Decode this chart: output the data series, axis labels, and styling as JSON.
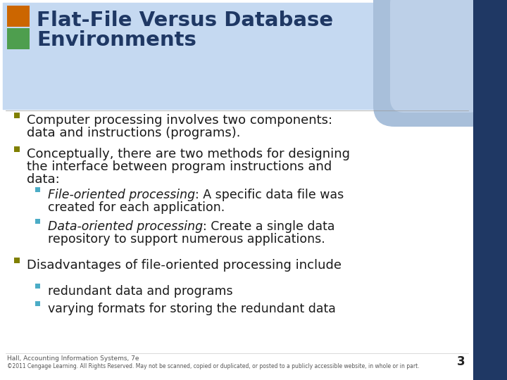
{
  "title_line1": "Flat-File Versus Database",
  "title_line2": "Environments",
  "title_color": "#1F3864",
  "bg_color": "#FFFFFF",
  "header_bg": "#C5D9F1",
  "right_bar_color": "#1F3864",
  "corner_ellipse_color": "#B8CCE4",
  "sq1_color": "#CC6600",
  "sq2_color": "#4E9E4E",
  "bullet_color_l1": "#808000",
  "bullet_color_l2": "#4BACC6",
  "text_color": "#1A1A1A",
  "footer_color": "#555555",
  "footer_text1": "Hall, Accounting Information Systems, 7e",
  "footer_text2": "©2011 Cengage Learning. All Rights Reserved. May not be scanned, copied or duplicated, or posted to a publicly accessible website, in whole or in part.",
  "page_number": "3",
  "bullets": [
    {
      "level": 1,
      "lines": [
        "Computer processing involves two components:",
        "data and instructions (programs)."
      ]
    },
    {
      "level": 1,
      "lines": [
        "Conceptually, there are two methods for designing",
        "the interface between program instructions and",
        "data:"
      ]
    },
    {
      "level": 2,
      "italic_part": "File-oriented processing",
      "lines": [
        ": A specific data file was",
        "created for each application."
      ]
    },
    {
      "level": 2,
      "italic_part": "Data-oriented processing",
      "lines": [
        ": Create a single data",
        "repository to support numerous applications."
      ]
    },
    {
      "level": 1,
      "lines": [
        "Disadvantages of file-oriented processing include"
      ]
    },
    {
      "level": 2,
      "lines": [
        "redundant data and programs"
      ]
    },
    {
      "level": 2,
      "lines": [
        "varying formats for storing the redundant data"
      ]
    }
  ]
}
